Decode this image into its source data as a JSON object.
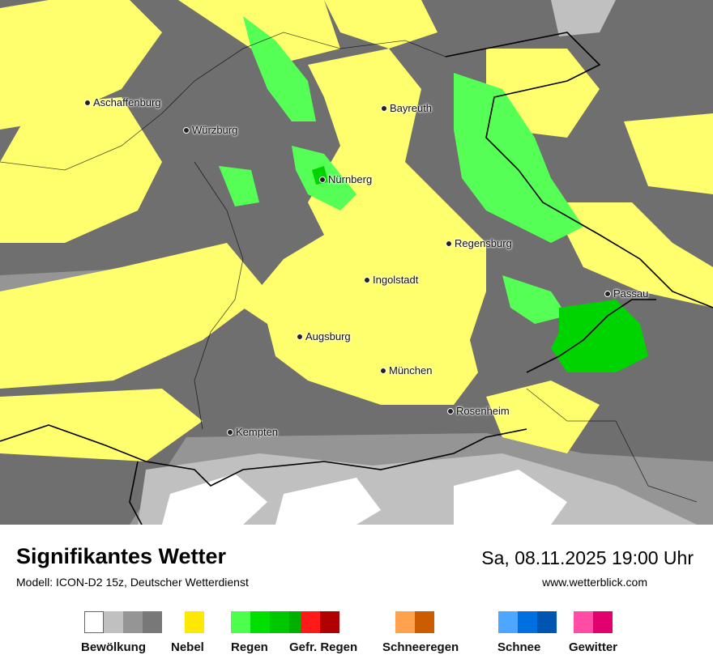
{
  "map": {
    "colors": {
      "cloud_dark": "#6f6f6f",
      "cloud_mid": "#959595",
      "cloud_light": "#c0c0c0",
      "fog": "#ffff6e",
      "rain_light": "#55ff55",
      "rain_mid": "#00d400"
    },
    "cities": [
      {
        "name": "Aschaffenburg"
      },
      {
        "name": "Würzburg"
      },
      {
        "name": "Bayreuth"
      },
      {
        "name": "Nürnberg"
      },
      {
        "name": "Regensburg"
      },
      {
        "name": "Ingolstadt"
      },
      {
        "name": "Passau"
      },
      {
        "name": "Augsburg"
      },
      {
        "name": "München"
      },
      {
        "name": "Rosenheim"
      },
      {
        "name": "Kempten"
      }
    ]
  },
  "header": {
    "title": "Signifikantes Wetter",
    "model": "Modell: ICON-D2 15z, Deutscher Wetterdienst",
    "datetime": "Sa, 08.11.2025 19:00 Uhr",
    "website": "www.wetterblick.com"
  },
  "legend": [
    {
      "label": "Bewölkung",
      "colors": [
        "#ffffff",
        "#c0c0c0",
        "#959595",
        "#787878"
      ]
    },
    {
      "label": "Nebel",
      "colors": [
        "#ffe800"
      ]
    },
    {
      "label": "Regen",
      "colors": [
        "#4dff4d",
        "#00e000",
        "#00c800",
        "#00b000"
      ]
    },
    {
      "label": "Gefr. Regen",
      "colors": [
        "#ff1a1a",
        "#b00000"
      ]
    },
    {
      "label": "Schneeregen",
      "colors": [
        "#ffa24d",
        "#cc5c00"
      ]
    },
    {
      "label": "Schnee",
      "colors": [
        "#4da6ff",
        "#0070e0",
        "#0055b0"
      ]
    },
    {
      "label": "Gewitter",
      "colors": [
        "#ff4da6",
        "#e0006e"
      ]
    }
  ]
}
